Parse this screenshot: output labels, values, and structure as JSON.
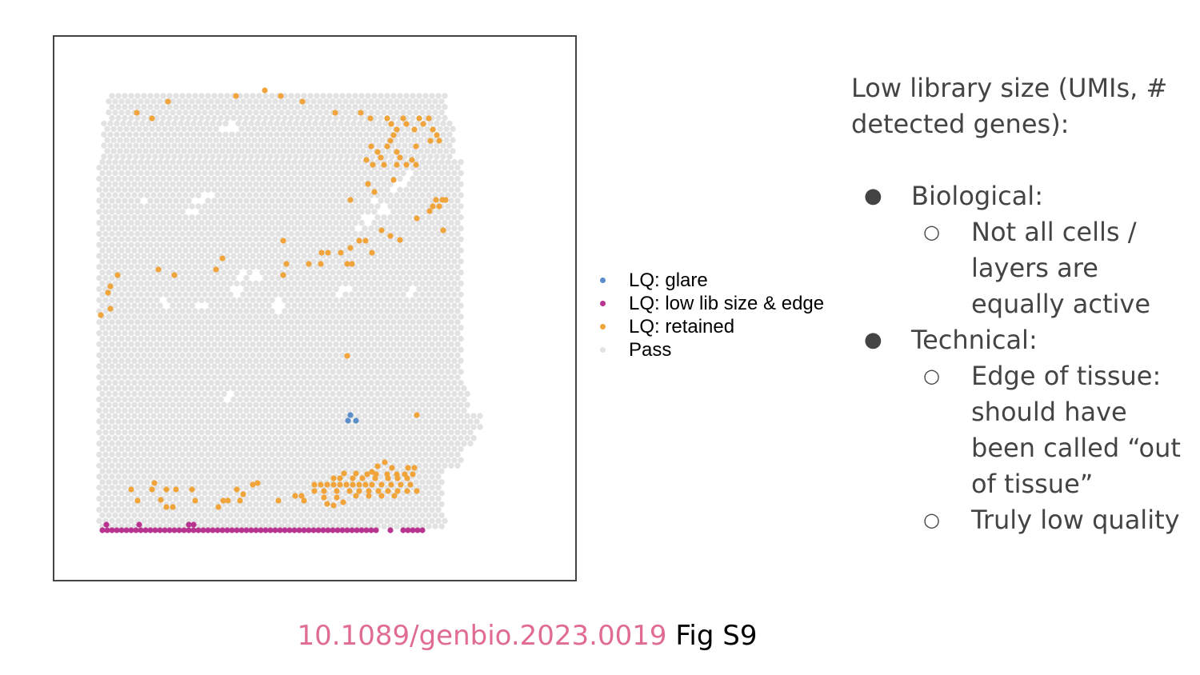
{
  "chart_data": {
    "type": "scatter",
    "title": "",
    "xlabel": "",
    "ylabel": "",
    "grid": false,
    "legend_position": "right",
    "series": [
      {
        "name": "LQ: glare",
        "color": "#5b8ec9",
        "points": [
          [
            438,
            519
          ],
          [
            435,
            526
          ],
          [
            445,
            526
          ]
        ]
      },
      {
        "name": "LQ: low lib size & edge",
        "color": "#b8348f",
        "points": [
          [
            128,
            663
          ],
          [
            134,
            663
          ],
          [
            140,
            663
          ],
          [
            146,
            663
          ],
          [
            152,
            663
          ],
          [
            158,
            663
          ],
          [
            164,
            663
          ],
          [
            170,
            663
          ],
          [
            176,
            663
          ],
          [
            182,
            663
          ],
          [
            188,
            663
          ],
          [
            194,
            663
          ],
          [
            200,
            663
          ],
          [
            206,
            663
          ],
          [
            212,
            663
          ],
          [
            218,
            663
          ],
          [
            224,
            663
          ],
          [
            230,
            663
          ],
          [
            236,
            663
          ],
          [
            242,
            663
          ],
          [
            248,
            663
          ],
          [
            254,
            663
          ],
          [
            260,
            663
          ],
          [
            266,
            663
          ],
          [
            272,
            663
          ],
          [
            278,
            663
          ],
          [
            284,
            663
          ],
          [
            290,
            663
          ],
          [
            296,
            663
          ],
          [
            302,
            663
          ],
          [
            308,
            663
          ],
          [
            314,
            663
          ],
          [
            320,
            663
          ],
          [
            326,
            663
          ],
          [
            332,
            663
          ],
          [
            338,
            663
          ],
          [
            344,
            663
          ],
          [
            350,
            663
          ],
          [
            356,
            663
          ],
          [
            362,
            663
          ],
          [
            368,
            663
          ],
          [
            374,
            663
          ],
          [
            380,
            663
          ],
          [
            386,
            663
          ],
          [
            392,
            663
          ],
          [
            398,
            663
          ],
          [
            404,
            663
          ],
          [
            410,
            663
          ],
          [
            416,
            663
          ],
          [
            422,
            663
          ],
          [
            428,
            663
          ],
          [
            434,
            663
          ],
          [
            440,
            663
          ],
          [
            446,
            663
          ],
          [
            452,
            663
          ],
          [
            458,
            663
          ],
          [
            464,
            663
          ],
          [
            470,
            663
          ],
          [
            488,
            663
          ],
          [
            504,
            663
          ],
          [
            510,
            663
          ],
          [
            516,
            663
          ],
          [
            522,
            663
          ],
          [
            528,
            663
          ],
          [
            133,
            656
          ],
          [
            174,
            656
          ],
          [
            236,
            656
          ],
          [
            242,
            656
          ]
        ]
      },
      {
        "name": "LQ: retained",
        "color": "#f0a43a",
        "points": [
          [
            210,
            127
          ],
          [
            295,
            120
          ],
          [
            331,
            113
          ],
          [
            351,
            120
          ],
          [
            378,
            127
          ],
          [
            171,
            141
          ],
          [
            190,
            148
          ],
          [
            419,
            141
          ],
          [
            451,
            141
          ],
          [
            463,
            148
          ],
          [
            484,
            148
          ],
          [
            504,
            148
          ],
          [
            524,
            148
          ],
          [
            536,
            148
          ],
          [
            489,
            155
          ],
          [
            496,
            162
          ],
          [
            508,
            155
          ],
          [
            518,
            162
          ],
          [
            529,
            155
          ],
          [
            541,
            162
          ],
          [
            546,
            169
          ],
          [
            538,
            176
          ],
          [
            549,
            176
          ],
          [
            492,
            169
          ],
          [
            488,
            176
          ],
          [
            464,
            183
          ],
          [
            472,
            190
          ],
          [
            484,
            183
          ],
          [
            496,
            190
          ],
          [
            520,
            183
          ],
          [
            476,
            197
          ],
          [
            500,
            197
          ],
          [
            458,
            200
          ],
          [
            466,
            206
          ],
          [
            480,
            206
          ],
          [
            496,
            206
          ],
          [
            508,
            206
          ],
          [
            520,
            206
          ],
          [
            515,
            200
          ],
          [
            460,
            230
          ],
          [
            468,
            240
          ],
          [
            492,
            225
          ],
          [
            438,
            250
          ],
          [
            545,
            250
          ],
          [
            553,
            250
          ],
          [
            557,
            250
          ],
          [
            541,
            258
          ],
          [
            549,
            258
          ],
          [
            537,
            264
          ],
          [
            521,
            273
          ],
          [
            554,
            288
          ],
          [
            354,
            301
          ],
          [
            449,
            301
          ],
          [
            457,
            301
          ],
          [
            477,
            288
          ],
          [
            488,
            295
          ],
          [
            500,
            300
          ],
          [
            438,
            310
          ],
          [
            426,
            316
          ],
          [
            402,
            316
          ],
          [
            410,
            316
          ],
          [
            465,
            316
          ],
          [
            278,
            323
          ],
          [
            386,
            330
          ],
          [
            401,
            330
          ],
          [
            434,
            330
          ],
          [
            440,
            330
          ],
          [
            270,
            337
          ],
          [
            358,
            330
          ],
          [
            354,
            344
          ],
          [
            147,
            344
          ],
          [
            198,
            337
          ],
          [
            218,
            344
          ],
          [
            138,
            358
          ],
          [
            135,
            366
          ],
          [
            138,
            386
          ],
          [
            126,
            394
          ],
          [
            434,
            445
          ],
          [
            521,
            519
          ],
          [
            481,
            578
          ],
          [
            472,
            583
          ],
          [
            490,
            585
          ],
          [
            510,
            585
          ],
          [
            518,
            585
          ],
          [
            465,
            590
          ],
          [
            430,
            592
          ],
          [
            445,
            592
          ],
          [
            459,
            593
          ],
          [
            470,
            593
          ],
          [
            484,
            593
          ],
          [
            496,
            593
          ],
          [
            506,
            593
          ],
          [
            516,
            593
          ],
          [
            393,
            606
          ],
          [
            401,
            606
          ],
          [
            409,
            606
          ],
          [
            417,
            606
          ],
          [
            425,
            606
          ],
          [
            433,
            606
          ],
          [
            441,
            606
          ],
          [
            449,
            606
          ],
          [
            457,
            606
          ],
          [
            465,
            606
          ],
          [
            477,
            606
          ],
          [
            489,
            606
          ],
          [
            501,
            606
          ],
          [
            513,
            606
          ],
          [
            417,
            598
          ],
          [
            425,
            598
          ],
          [
            441,
            598
          ],
          [
            453,
            598
          ],
          [
            469,
            598
          ],
          [
            485,
            598
          ],
          [
            497,
            598
          ],
          [
            509,
            598
          ],
          [
            393,
            614
          ],
          [
            405,
            614
          ],
          [
            421,
            614
          ],
          [
            437,
            614
          ],
          [
            449,
            614
          ],
          [
            461,
            614
          ],
          [
            473,
            614
          ],
          [
            485,
            614
          ],
          [
            497,
            614
          ],
          [
            509,
            614
          ],
          [
            521,
            614
          ],
          [
            445,
            620
          ],
          [
            461,
            620
          ],
          [
            477,
            620
          ],
          [
            493,
            620
          ],
          [
            405,
            622
          ],
          [
            421,
            622
          ],
          [
            429,
            628
          ],
          [
            409,
            630
          ],
          [
            417,
            632
          ],
          [
            193,
            604
          ],
          [
            164,
            612
          ],
          [
            190,
            612
          ],
          [
            208,
            612
          ],
          [
            220,
            612
          ],
          [
            240,
            612
          ],
          [
            296,
            612
          ],
          [
            316,
            606
          ],
          [
            322,
            604
          ],
          [
            369,
            620
          ],
          [
            377,
            620
          ],
          [
            172,
            626
          ],
          [
            208,
            634
          ],
          [
            216,
            634
          ],
          [
            244,
            626
          ],
          [
            273,
            634
          ],
          [
            279,
            626
          ],
          [
            285,
            626
          ],
          [
            300,
            626
          ],
          [
            304,
            618
          ],
          [
            348,
            626
          ],
          [
            380,
            626
          ],
          [
            201,
            625
          ]
        ]
      }
    ],
    "pass_series": {
      "name": "Pass",
      "color": "#e2e2e2"
    }
  },
  "legend": {
    "items": [
      {
        "label": "LQ: glare",
        "color": "#5b8ec9"
      },
      {
        "label": "LQ: low lib size & edge",
        "color": "#b8348f"
      },
      {
        "label": "LQ: retained",
        "color": "#f0a43a"
      },
      {
        "label": "Pass",
        "color": "#e2e2e2"
      }
    ]
  },
  "notes": {
    "heading": "Low library size (UMIs, # detected genes):",
    "bullets": [
      {
        "text": "Biological:",
        "mark": "●"
      },
      {
        "text": "Not all cells / layers are equally active",
        "mark": "○"
      },
      {
        "text": "Technical:",
        "mark": "●"
      },
      {
        "text": "Edge of tissue: should have been called “out of tissue”",
        "mark": "○"
      },
      {
        "text": "Truly low quality",
        "mark": "○"
      }
    ]
  },
  "caption": {
    "doi": "10.1089/genbio.2023.0019",
    "figure": "Fig S9",
    "doi_color": "#e06b95"
  }
}
